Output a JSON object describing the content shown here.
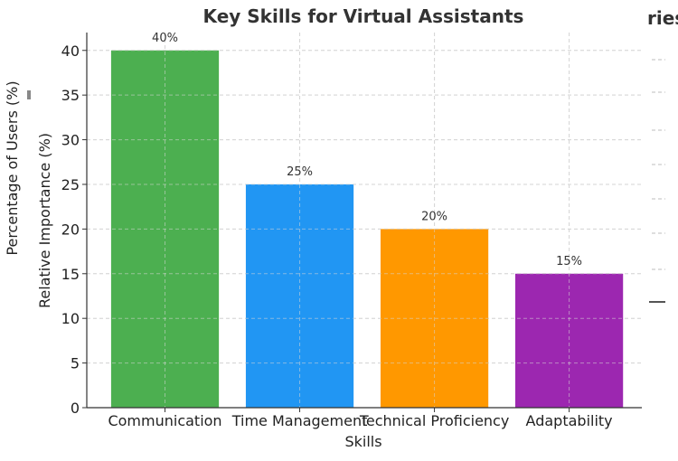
{
  "chart_data": {
    "type": "bar",
    "title": "Key Skills for Virtual Assistants",
    "xlabel": "Skills",
    "ylabel": "Relative Importance (%)",
    "categories": [
      "Communication",
      "Time Management",
      "Technical Proficiency",
      "Adaptability"
    ],
    "values": [
      40,
      25,
      20,
      15
    ],
    "data_labels": [
      "40%",
      "25%",
      "20%",
      "15%"
    ],
    "colors": [
      "#4caf50",
      "#2196f3",
      "#ff9800",
      "#9c27b0"
    ],
    "ylim": [
      0,
      42
    ],
    "yticks": [
      0,
      5,
      10,
      15,
      20,
      25,
      30,
      35,
      40
    ],
    "grid": true
  },
  "overlay": {
    "ylabel": "Percentage of Users (%)",
    "title_fragment": "ries"
  }
}
